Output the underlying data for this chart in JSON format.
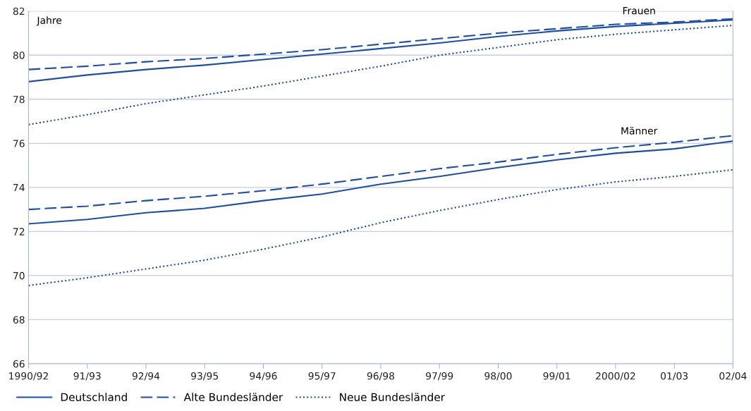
{
  "chart_data": {
    "type": "line",
    "categories": [
      "1990/92",
      "91/93",
      "92/94",
      "93/95",
      "94/96",
      "95/97",
      "96/98",
      "97/99",
      "98/00",
      "99/01",
      "2000/02",
      "01/03",
      "02/04"
    ],
    "ylabel": "Jahre",
    "ylim": [
      66,
      82
    ],
    "yticks": [
      66,
      68,
      70,
      72,
      74,
      76,
      78,
      80,
      82
    ],
    "grid": "y",
    "legend": "bottom",
    "series": [
      {
        "name": "Deutschland",
        "color": "#1f4f9a",
        "line_style": "solid",
        "values": [
          78.8,
          79.1,
          79.35,
          79.55,
          79.8,
          80.05,
          80.3,
          80.55,
          80.85,
          81.1,
          81.3,
          81.45,
          81.6
        ]
      },
      {
        "name": "Alte Bundesländer",
        "color": "#1f4f9a",
        "line_style": "dashed",
        "values": [
          79.35,
          79.5,
          79.7,
          79.85,
          80.05,
          80.25,
          80.5,
          80.75,
          81.0,
          81.2,
          81.4,
          81.5,
          81.65
        ]
      },
      {
        "name": "Neue Bundesländer",
        "color": "#1f4f9a",
        "line_style": "dotted",
        "values": [
          76.85,
          77.3,
          77.8,
          78.2,
          78.6,
          79.05,
          79.5,
          80.0,
          80.35,
          80.7,
          80.95,
          81.15,
          81.35
        ]
      },
      {
        "color": "#1f4f9a",
        "line_style": "solid",
        "values": [
          72.35,
          72.55,
          72.85,
          73.05,
          73.4,
          73.7,
          74.15,
          74.5,
          74.9,
          75.25,
          75.55,
          75.75,
          76.1
        ]
      },
      {
        "color": "#1f4f9a",
        "line_style": "dashed",
        "values": [
          73.0,
          73.15,
          73.4,
          73.6,
          73.85,
          74.15,
          74.5,
          74.85,
          75.15,
          75.5,
          75.8,
          76.05,
          76.35
        ]
      },
      {
        "color": "#1f4f9a",
        "line_style": "dotted",
        "values": [
          69.55,
          69.9,
          70.3,
          70.7,
          71.2,
          71.75,
          72.4,
          72.95,
          73.45,
          73.9,
          74.25,
          74.5,
          74.8
        ]
      }
    ],
    "annotations": [
      "Frauen",
      "Männer"
    ]
  }
}
